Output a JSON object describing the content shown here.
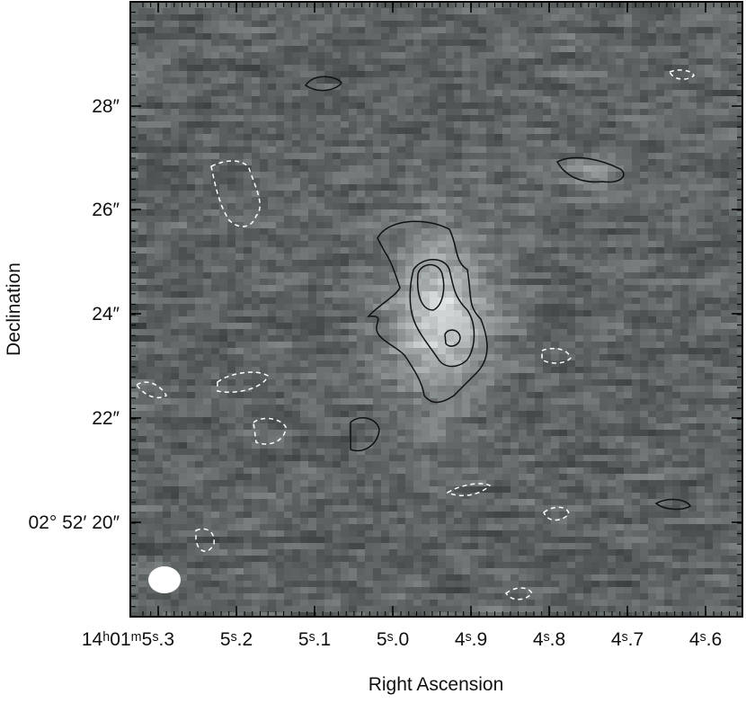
{
  "figure": {
    "x_axis": {
      "label": "Right Ascension",
      "ticks": [
        "14ʰ01ᵐ5ˢ.3",
        "5ˢ.2",
        "5ˢ.1",
        "5ˢ.0",
        "4ˢ.9",
        "4ˢ.8",
        "4ˢ.7",
        "4ˢ.6"
      ]
    },
    "y_axis": {
      "label": "Declination",
      "ticks": [
        "28″",
        "26″",
        "24″",
        "22″",
        "02° 52′ 20″"
      ]
    }
  }
}
